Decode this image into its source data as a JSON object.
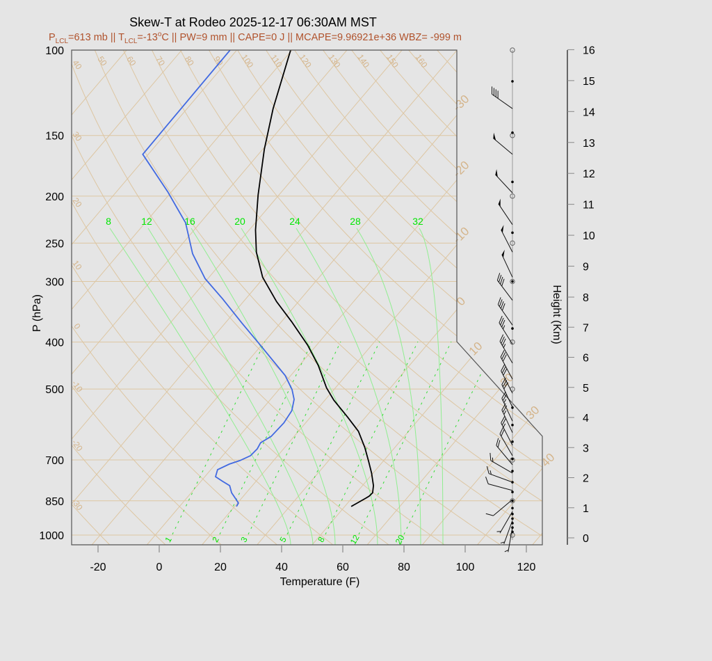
{
  "chart_data": {
    "type": "line",
    "title": "Skew-T at Rodeo 2025-12-17 06:30AM MST",
    "subtitle": {
      "p": "P",
      "lcl1": "LCL",
      "part1": "=613 mb || T",
      "lcl2": "LCL",
      "part2": "=-13",
      "deg": "o",
      "part3": "C || PW=9 mm || CAPE=0 J || MCAPE=9.96921e+36 WBZ= -999 m"
    },
    "xlabel": "Temperature (F)",
    "ylabel": "P (hPa)",
    "y2label": "Height (Km)",
    "x_ticks": [
      -20,
      0,
      20,
      40,
      60,
      80,
      100,
      120
    ],
    "p_ticks": [
      100,
      150,
      200,
      250,
      300,
      400,
      500,
      700,
      850,
      1000
    ],
    "height_ticks": [
      0,
      1,
      2,
      3,
      4,
      5,
      6,
      7,
      8,
      9,
      10,
      11,
      12,
      13,
      14,
      15,
      16
    ],
    "ylim_hpa": [
      1050,
      100
    ],
    "y_scale": "log",
    "grid": true,
    "temperature": {
      "color": "#000000",
      "points": [
        [
          100,
          -94.4
        ],
        [
          132,
          -83.9
        ],
        [
          160,
          -75.5
        ],
        [
          199,
          -64.8
        ],
        [
          235,
          -55.9
        ],
        [
          261,
          -49.5
        ],
        [
          294,
          -40.5
        ],
        [
          330,
          -29.2
        ],
        [
          363,
          -18.7
        ],
        [
          406,
          -6.9
        ],
        [
          447,
          2.2
        ],
        [
          497,
          11.1
        ],
        [
          527,
          16.9
        ],
        [
          572,
          26.3
        ],
        [
          611,
          33.6
        ],
        [
          660,
          40.2
        ],
        [
          705,
          45.3
        ],
        [
          745,
          49.5
        ],
        [
          791,
          53.6
        ],
        [
          818,
          55.3
        ],
        [
          831,
          55.1
        ],
        [
          839,
          54.6
        ],
        [
          873,
          52.1
        ]
      ]
    },
    "dewpoint": {
      "color": "#4169e1",
      "points": [
        [
          100,
          -114.2
        ],
        [
          164,
          -113.8
        ],
        [
          196,
          -95.2
        ],
        [
          227,
          -80.8
        ],
        [
          263,
          -69.9
        ],
        [
          296,
          -58.9
        ],
        [
          326,
          -47.5
        ],
        [
          366,
          -34.4
        ],
        [
          404,
          -22.9
        ],
        [
          469,
          -5.8
        ],
        [
          501,
          0.3
        ],
        [
          525,
          3.7
        ],
        [
          554,
          6.1
        ],
        [
          587,
          6.9
        ],
        [
          626,
          6.5
        ],
        [
          645,
          4.8
        ],
        [
          664,
          5.4
        ],
        [
          686,
          5.1
        ],
        [
          702,
          3.0
        ],
        [
          714,
          0.5
        ],
        [
          733,
          -1.8
        ],
        [
          758,
          -0.5
        ],
        [
          775,
          3.1
        ],
        [
          791,
          6.6
        ],
        [
          818,
          9.2
        ],
        [
          845,
          12.6
        ],
        [
          859,
          14.3
        ],
        [
          873,
          14.6
        ]
      ]
    },
    "isotherm_labels_c": [
      "-30",
      "-20",
      "-10",
      "0",
      "10",
      "20",
      "30",
      "40"
    ],
    "dry_adiabat_top_labels": [
      "50",
      "60",
      "70",
      "80",
      "90",
      "100",
      "110",
      "120",
      "130",
      "140",
      "150",
      "160"
    ],
    "dry_adiabat_left_labels": [
      "40",
      "30",
      "20",
      "10",
      "0",
      "-10",
      "-20",
      "-30"
    ],
    "moist_adiabat_labels": [
      "8",
      "12",
      "16",
      "20",
      "24",
      "28",
      "32"
    ],
    "mixing_ratio_labels": [
      "1",
      "2",
      "3",
      "5",
      "8",
      "12",
      "20"
    ],
    "colors": {
      "grid": "#ddc6a2",
      "grid_label": "#d4b48a",
      "moist": "#90ee90",
      "mixing": "#33dd33",
      "label_green": "#00e600",
      "subtitle": "#b0522c"
    },
    "winds_p_dir_kt": [
      [
        132,
        305,
        40
      ],
      [
        164,
        310,
        50
      ],
      [
        197,
        317,
        50
      ],
      [
        229,
        326,
        50
      ],
      [
        261,
        333,
        50
      ],
      [
        294,
        335,
        50
      ],
      [
        328,
        323,
        40
      ],
      [
        369,
        325,
        40
      ],
      [
        404,
        328,
        35
      ],
      [
        442,
        330,
        35
      ],
      [
        477,
        332,
        30
      ],
      [
        510,
        333,
        30
      ],
      [
        545,
        335,
        30
      ],
      [
        582,
        335,
        25
      ],
      [
        615,
        335,
        25
      ],
      [
        653,
        333,
        25
      ],
      [
        686,
        330,
        20
      ],
      [
        716,
        320,
        20
      ],
      [
        745,
        300,
        15
      ],
      [
        778,
        290,
        15
      ],
      [
        809,
        285,
        10
      ],
      [
        845,
        230,
        10
      ],
      [
        894,
        210,
        5
      ],
      [
        933,
        200,
        5
      ],
      [
        964,
        190,
        5
      ]
    ],
    "wind_level_circles_hpa": [
      100,
      150,
      200,
      250,
      300,
      400,
      500,
      700,
      850,
      1000
    ],
    "wind_level_dots_hpa": [
      116,
      148,
      187,
      238,
      300,
      375,
      546,
      593,
      642,
      697,
      738,
      778,
      815,
      850,
      880,
      905,
      925,
      945,
      965,
      985
    ]
  }
}
